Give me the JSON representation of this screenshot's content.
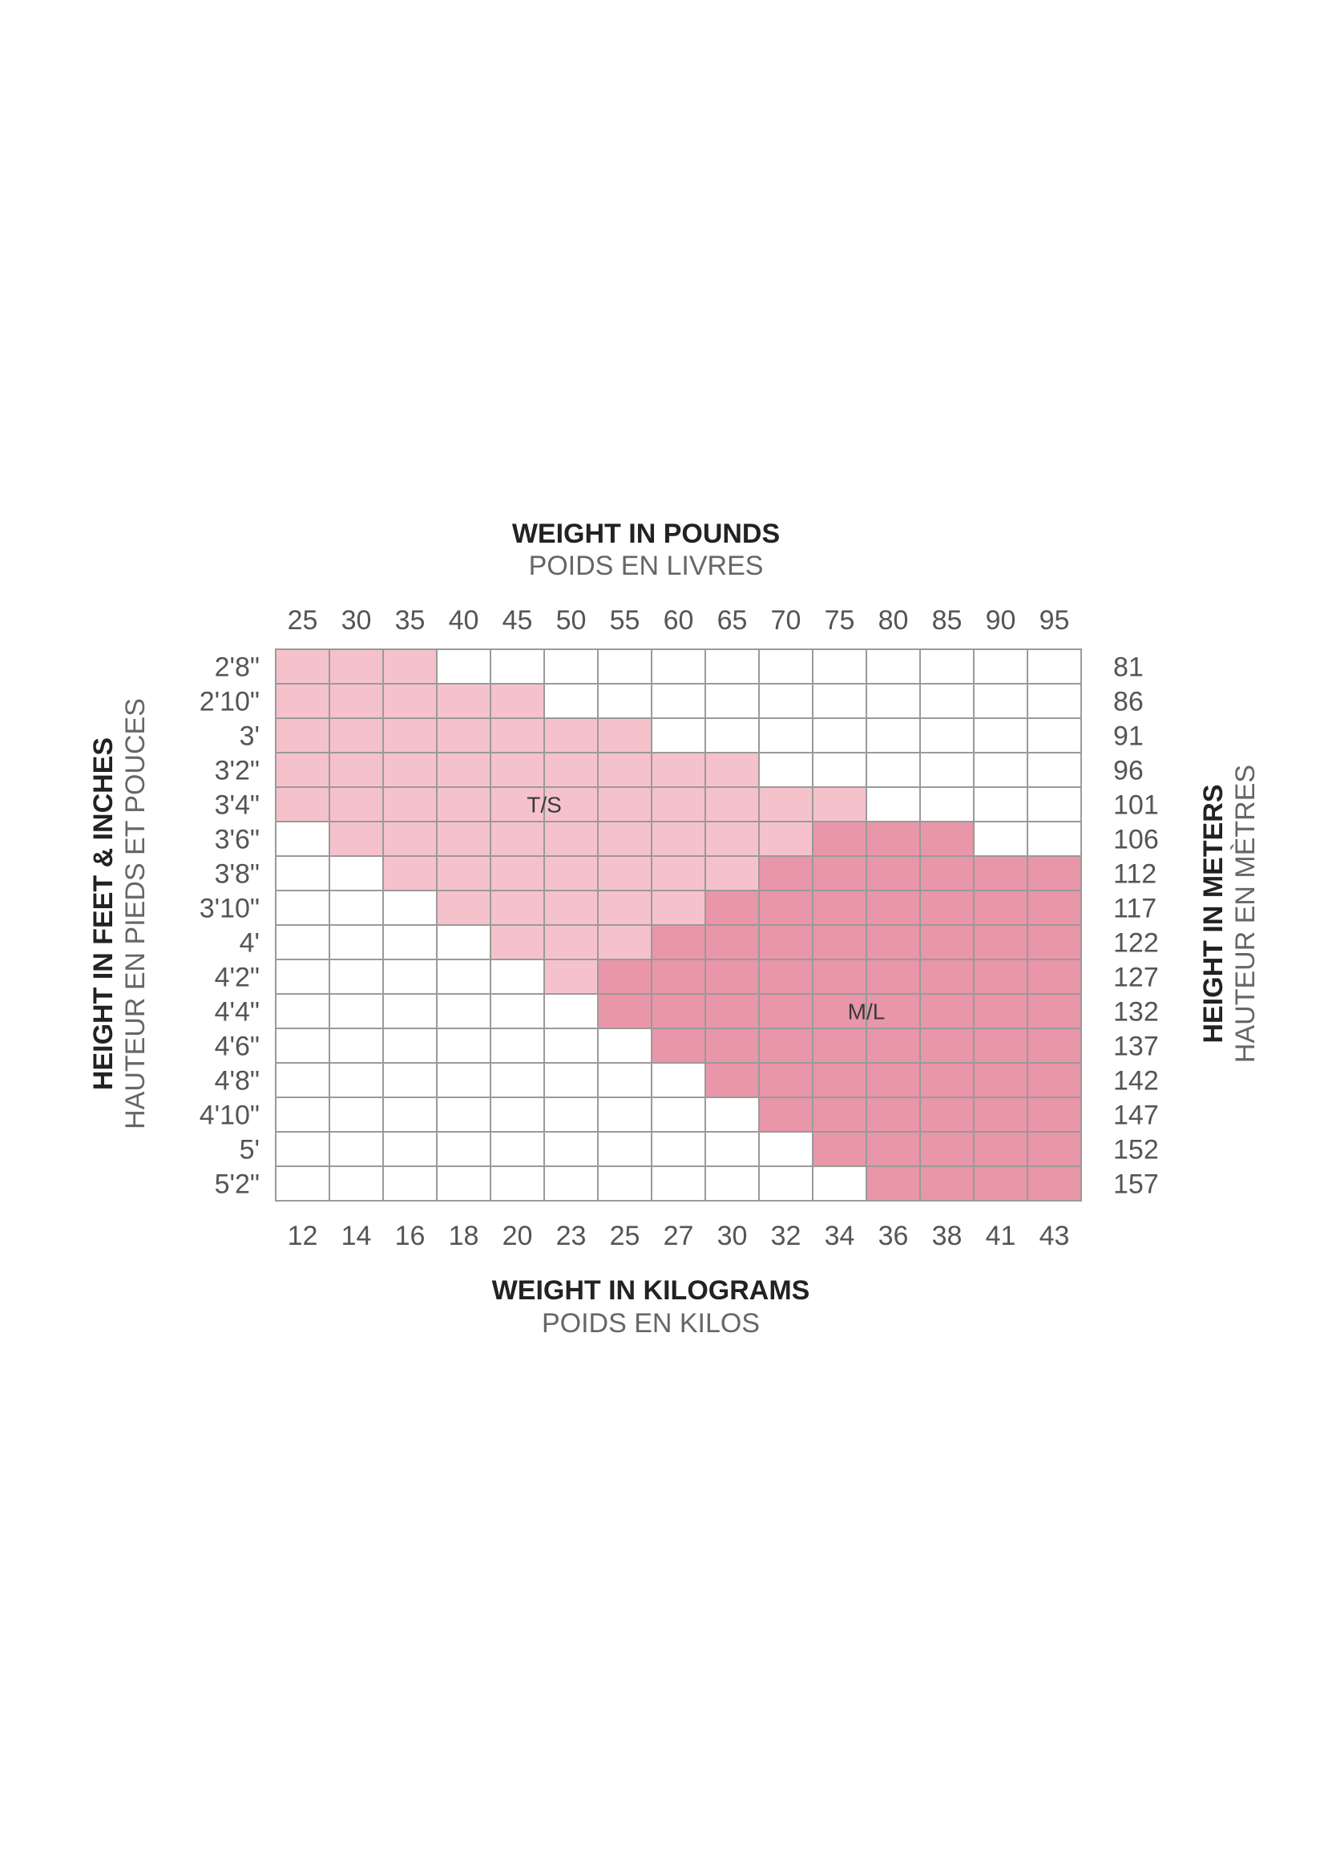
{
  "chart_data": {
    "type": "heatmap",
    "title": "WEIGHT IN POUNDS",
    "subtitle": "POIDS EN LIVRES",
    "xlabel_bottom": "WEIGHT IN KILOGRAMS",
    "xlabel_bottom_sub": "POIDS EN KILOS",
    "ylabel_left": "HEIGHT IN FEET & INCHES",
    "ylabel_left_sub": "HAUTEUR EN PIEDS ET POUCES",
    "ylabel_right": "HEIGHT IN METERS",
    "ylabel_right_sub": "HAUTEUR EN MÈTRES",
    "x_pounds": [
      "25",
      "30",
      "35",
      "40",
      "45",
      "50",
      "55",
      "60",
      "65",
      "70",
      "75",
      "80",
      "85",
      "90",
      "95"
    ],
    "x_kilograms": [
      "12",
      "14",
      "16",
      "18",
      "20",
      "23",
      "25",
      "27",
      "30",
      "32",
      "34",
      "36",
      "38",
      "41",
      "43"
    ],
    "y_feet": [
      "2'8\"",
      "2'10\"",
      "3'",
      "3'2\"",
      "3'4\"",
      "3'6\"",
      "3'8\"",
      "3'10\"",
      "4'",
      "4'2\"",
      "4'4\"",
      "4'6\"",
      "4'8\"",
      "4'10\"",
      "5'",
      "5'2\""
    ],
    "y_centimeters": [
      "81",
      "86",
      "91",
      "96",
      "101",
      "106",
      "112",
      "117",
      "122",
      "127",
      "132",
      "137",
      "142",
      "147",
      "152",
      "157"
    ],
    "zones": [
      {
        "label": "T/S",
        "color": "#f5c2cc"
      },
      {
        "label": "M/L",
        "color": "#e896a8"
      }
    ],
    "cells": [
      [
        1,
        1,
        1,
        0,
        0,
        0,
        0,
        0,
        0,
        0,
        0,
        0,
        0,
        0,
        0
      ],
      [
        1,
        1,
        1,
        1,
        1,
        0,
        0,
        0,
        0,
        0,
        0,
        0,
        0,
        0,
        0
      ],
      [
        1,
        1,
        1,
        1,
        1,
        1,
        1,
        0,
        0,
        0,
        0,
        0,
        0,
        0,
        0
      ],
      [
        1,
        1,
        1,
        1,
        1,
        1,
        1,
        1,
        1,
        0,
        0,
        0,
        0,
        0,
        0
      ],
      [
        1,
        1,
        1,
        1,
        1,
        1,
        1,
        1,
        1,
        1,
        1,
        0,
        0,
        0,
        0
      ],
      [
        0,
        1,
        1,
        1,
        1,
        1,
        1,
        1,
        1,
        1,
        2,
        2,
        2,
        0,
        0
      ],
      [
        0,
        0,
        1,
        1,
        1,
        1,
        1,
        1,
        1,
        2,
        2,
        2,
        2,
        2,
        2
      ],
      [
        0,
        0,
        0,
        1,
        1,
        1,
        1,
        1,
        2,
        2,
        2,
        2,
        2,
        2,
        2
      ],
      [
        0,
        0,
        0,
        0,
        1,
        1,
        1,
        2,
        2,
        2,
        2,
        2,
        2,
        2,
        2
      ],
      [
        0,
        0,
        0,
        0,
        0,
        1,
        2,
        2,
        2,
        2,
        2,
        2,
        2,
        2,
        2
      ],
      [
        0,
        0,
        0,
        0,
        0,
        0,
        2,
        2,
        2,
        2,
        2,
        2,
        2,
        2,
        2
      ],
      [
        0,
        0,
        0,
        0,
        0,
        0,
        0,
        2,
        2,
        2,
        2,
        2,
        2,
        2,
        2
      ],
      [
        0,
        0,
        0,
        0,
        0,
        0,
        0,
        0,
        2,
        2,
        2,
        2,
        2,
        2,
        2
      ],
      [
        0,
        0,
        0,
        0,
        0,
        0,
        0,
        0,
        0,
        2,
        2,
        2,
        2,
        2,
        2
      ],
      [
        0,
        0,
        0,
        0,
        0,
        0,
        0,
        0,
        0,
        0,
        2,
        2,
        2,
        2,
        2
      ],
      [
        0,
        0,
        0,
        0,
        0,
        0,
        0,
        0,
        0,
        0,
        0,
        2,
        2,
        2,
        2
      ]
    ],
    "empty_color": "#ffffff",
    "grid_color": "#9a9a9a"
  }
}
